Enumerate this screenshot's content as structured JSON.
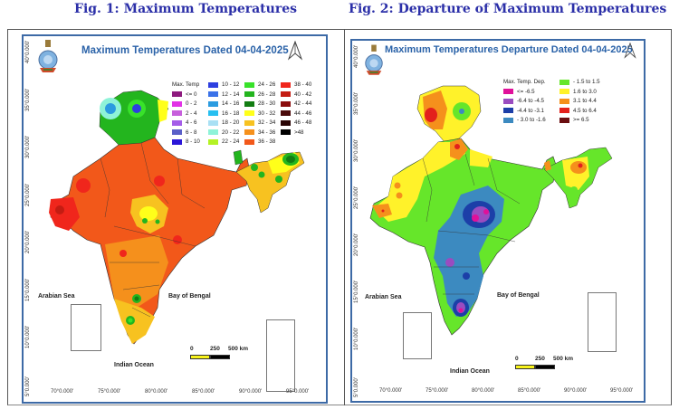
{
  "figures": [
    {
      "caption": "Fig. 1: Maximum Temperatures",
      "map_title": "Maximum Temperatures  Dated 04-04-2025",
      "legend": {
        "title": "Max. Temp",
        "items": [
          {
            "label": "<= 0",
            "color": "#8e1a7e"
          },
          {
            "label": "0 - 2",
            "color": "#e232e6"
          },
          {
            "label": "2 - 4",
            "color": "#c75fdc"
          },
          {
            "label": "4 - 6",
            "color": "#a45ce8"
          },
          {
            "label": "6 - 8",
            "color": "#5a5fc8"
          },
          {
            "label": "8 - 10",
            "color": "#2b16d8"
          },
          {
            "label": "10 - 12",
            "color": "#2d3fe0"
          },
          {
            "label": "12 - 14",
            "color": "#3a72e8"
          },
          {
            "label": "14 - 16",
            "color": "#2b9be0"
          },
          {
            "label": "16 - 18",
            "color": "#27bff0"
          },
          {
            "label": "18 - 20",
            "color": "#a8e0f4"
          },
          {
            "label": "20 - 22",
            "color": "#8ef3d8"
          },
          {
            "label": "22 - 24",
            "color": "#b4f224"
          },
          {
            "label": "24 - 26",
            "color": "#38e22a"
          },
          {
            "label": "26 - 28",
            "color": "#23b51e"
          },
          {
            "label": "28 - 30",
            "color": "#127d12"
          },
          {
            "label": "30 - 32",
            "color": "#ffff1a"
          },
          {
            "label": "32 - 34",
            "color": "#f7c220"
          },
          {
            "label": "34 - 36",
            "color": "#f5901c"
          },
          {
            "label": "36 - 38",
            "color": "#f2581a"
          },
          {
            "label": "38 - 40",
            "color": "#f0261c"
          },
          {
            "label": "40 - 42",
            "color": "#c41c12"
          },
          {
            "label": "42 - 44",
            "color": "#8a0c0c"
          },
          {
            "label": "44 - 46",
            "color": "#4a0a0a"
          },
          {
            "label": "46 - 48",
            "color": "#2a0505"
          },
          {
            "label": ">48",
            "color": "#000000"
          }
        ]
      },
      "latitudes": [
        "40°0.000'",
        "35°0.000'",
        "30°0.000'",
        "25°0.000'",
        "20°0.000'",
        "15°0.000'",
        "10°0.000'",
        "5°0.000'"
      ],
      "longitudes": [
        "70°0.000'",
        "75°0.000'",
        "80°0.000'",
        "85°0.000'",
        "90°0.000'",
        "95°0.000'"
      ],
      "labels": {
        "arabian_sea": "Arabian Sea",
        "bay_of_bengal": "Bay of Bengal",
        "indian_ocean": "Indian Ocean"
      },
      "scale": {
        "ticks": [
          "0",
          "250",
          "500 km"
        ]
      }
    },
    {
      "caption": "Fig. 2: Departure of Maximum Temperatures",
      "map_title": "Maximum Temperatures Departure Dated 04-04-2025",
      "legend": {
        "title": "Max. Temp. Dep.",
        "items": [
          {
            "label": "<= -6.5",
            "color": "#e0109a"
          },
          {
            "label": "-6.4 to -4.5",
            "color": "#9a4cc0"
          },
          {
            "label": "-4.4 to -3.1",
            "color": "#1c3fa8"
          },
          {
            "label": "- 3.0 to -1.6",
            "color": "#3c8ac0"
          },
          {
            "label": "- 1.5 to 1.5",
            "color": "#66e62a"
          },
          {
            "label": "1.6 to  3.0",
            "color": "#fff22a"
          },
          {
            "label": "3.1 to 4.4",
            "color": "#f5901c"
          },
          {
            "label": "4.5 to 6.4",
            "color": "#e3201c"
          },
          {
            "label": ">= 6.5",
            "color": "#6a0e10"
          }
        ]
      },
      "latitudes": [
        "40°0.000'",
        "35°0.000'",
        "30°0.000'",
        "25°0.000'",
        "20°0.000'",
        "15°0.000'",
        "10°0.000'",
        "5°0.000'"
      ],
      "longitudes": [
        "70°0.000'",
        "75°0.000'",
        "80°0.000'",
        "85°0.000'",
        "90°0.000'",
        "95°0.000'"
      ],
      "labels": {
        "arabian_sea": "Arabian Sea",
        "bay_of_bengal": "Bay of Bengal",
        "indian_ocean": "Indian Ocean"
      },
      "scale": {
        "ticks": [
          "0",
          "250",
          "500 km"
        ]
      }
    }
  ]
}
